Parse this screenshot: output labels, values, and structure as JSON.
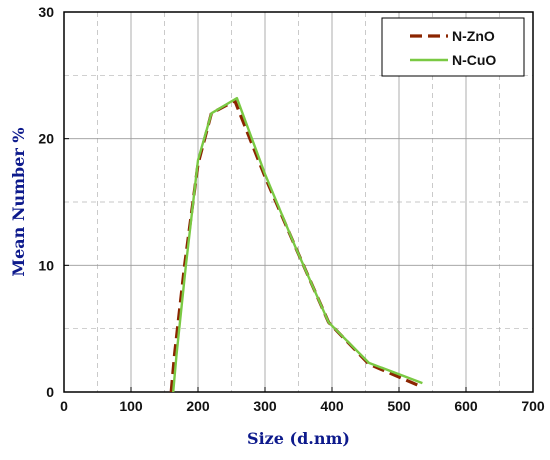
{
  "chart_data": {
    "type": "line",
    "title": "",
    "xlabel": "Size (d.nm)",
    "ylabel": "Mean Number %",
    "xlim": [
      0,
      700
    ],
    "ylim": [
      0,
      30
    ],
    "xticks": [
      0,
      100,
      200,
      300,
      400,
      500,
      600,
      700
    ],
    "yticks": [
      0,
      10,
      20,
      30
    ],
    "grid": true,
    "legend_position": "top-right",
    "series": [
      {
        "name": "N-ZnO",
        "color": "#8b2500",
        "style": "dashed",
        "x": [
          160,
          165,
          180,
          200,
          220,
          255,
          300,
          345,
          395,
          455,
          530
        ],
        "y": [
          0,
          3,
          10,
          18,
          22,
          23,
          17,
          11.5,
          5.5,
          2.2,
          0.5
        ]
      },
      {
        "name": "N-CuO",
        "color": "#7ac943",
        "style": "solid",
        "x": [
          163,
          168,
          182,
          200,
          220,
          258,
          300,
          345,
          395,
          455,
          535
        ],
        "y": [
          0,
          3,
          10,
          18.3,
          22,
          23.2,
          17.2,
          11.5,
          5.5,
          2.3,
          0.7
        ]
      }
    ]
  }
}
